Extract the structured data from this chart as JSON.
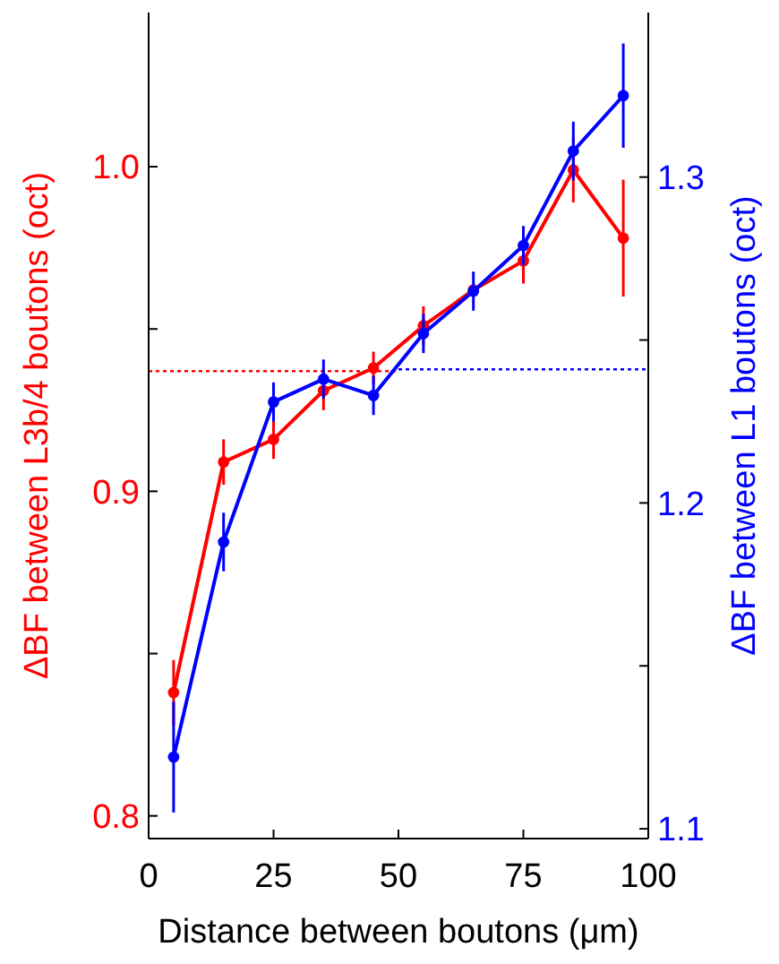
{
  "chart_data": {
    "type": "line",
    "xlabel": "Distance between boutons (μm)",
    "ylabel": "ΔBF between L3b/4 boutons (oct)",
    "y2label": "ΔBF between L1 boutons (oct)",
    "x": [
      5,
      15,
      25,
      35,
      45,
      55,
      65,
      75,
      85,
      95
    ],
    "series": [
      {
        "color": "#ff0000",
        "values": [
          0.838,
          0.909,
          0.916,
          0.931,
          0.938,
          0.951,
          0.962,
          0.971,
          0.999,
          0.978
        ],
        "errors": [
          0.01,
          0.007,
          0.006,
          0.006,
          0.005,
          0.006,
          null,
          0.007,
          0.01,
          0.018
        ]
      },
      {
        "color": "#0000ff",
        "axis": "y2",
        "values": [
          1.122,
          1.188,
          1.231,
          1.238,
          1.233,
          1.252,
          1.265,
          1.279,
          1.308,
          1.325
        ],
        "errors": [
          0.017,
          0.009,
          0.006,
          0.006,
          0.006,
          0.006,
          0.006,
          0.006,
          0.009,
          0.016
        ]
      }
    ],
    "ref_lines": [
      {
        "axis": "y",
        "value": 0.937,
        "color": "#ff0000",
        "line_style": "dotted"
      },
      {
        "axis": "y2",
        "value": 1.241,
        "color": "#0000ff",
        "line_style": "dotted"
      }
    ],
    "xlim": [
      0,
      100
    ],
    "xticks": [
      0,
      25,
      50,
      75,
      100
    ],
    "ylim": [
      0.793,
      1.0475
    ],
    "yticks": [
      {
        "value": 0.8,
        "label": "0.8"
      },
      {
        "value": 0.85,
        "label": null
      },
      {
        "value": 0.9,
        "label": "0.9"
      },
      {
        "value": 0.95,
        "label": null
      },
      {
        "value": 1.0,
        "label": "1.0"
      }
    ],
    "y2lim": [
      1.097,
      1.3505
    ],
    "y2ticks": [
      {
        "value": 1.1,
        "label": "1.1"
      },
      {
        "value": 1.15,
        "label": null
      },
      {
        "value": 1.2,
        "label": "1.2"
      },
      {
        "value": 1.25,
        "label": null
      },
      {
        "value": 1.3,
        "label": "1.3"
      }
    ],
    "marker": "circle",
    "line_style": "solid"
  }
}
